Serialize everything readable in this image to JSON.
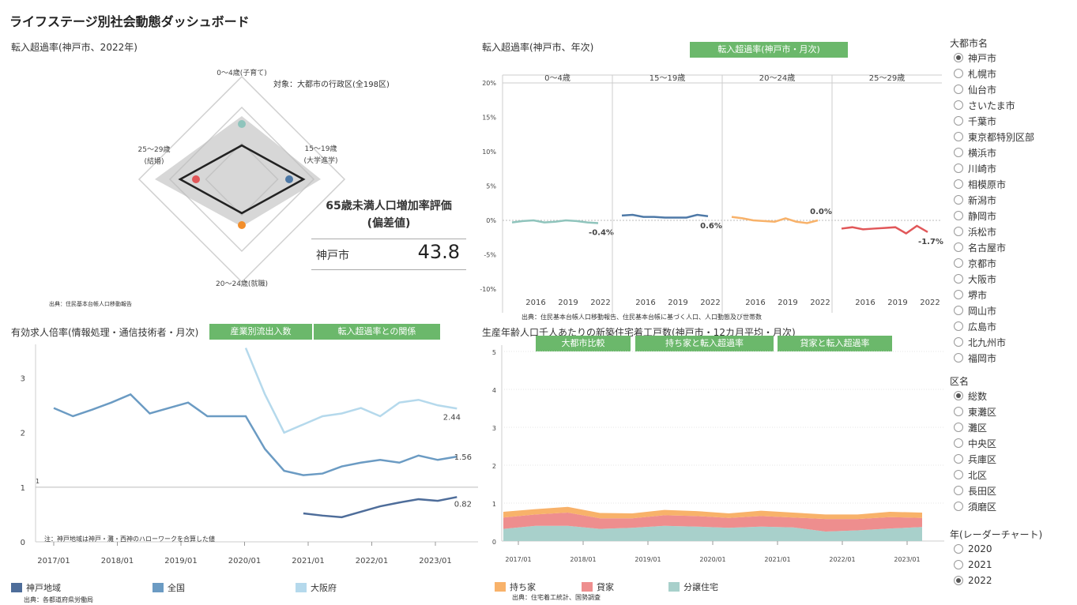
{
  "title": "ライフステージ別社会動態ダッシュボード",
  "radar": {
    "title": "転入超過率(神戸市、2022年)",
    "note": "対象：大都市の行政区(全198区)",
    "source": "出典：住民基本台帳人口移動報告",
    "axis_top": "0～4歳(子育て)",
    "axis_right_1": "15～19歳",
    "axis_right_2": "(大学進学)",
    "axis_bottom": "20～24歳(就職)",
    "axis_left_1": "25～29歳",
    "axis_left_2": "(結婚)",
    "colors": {
      "top": "#8fc4bc",
      "right": "#4e79a7",
      "bottom": "#f28e2b",
      "left": "#e15759"
    }
  },
  "kpi": {
    "title_1": "65歳未満人口増加率評価",
    "title_2": "(偏差値)",
    "city": "神戸市",
    "value": "43.8"
  },
  "trend": {
    "title": "転入超過率(神戸市、年次)",
    "button": "転入超過率(神戸市・月次)",
    "source": "出典：住民基本台帳人口移動報告、住民基本台帳に基づく人口、人口動態及び世帯数",
    "y_ticks": [
      "20%",
      "15%",
      "10%",
      "5%",
      "0%",
      "-5%",
      "-10%"
    ],
    "x_ticks": [
      "2016",
      "2019",
      "2022"
    ],
    "panels": [
      {
        "label": "0～4歳",
        "color": "#8fc4bc",
        "end_label": "-0.4%"
      },
      {
        "label": "15～19歳",
        "color": "#4e79a7",
        "end_label": "0.6%"
      },
      {
        "label": "20～24歳",
        "color": "#f8b26a",
        "end_label": "0.0%"
      },
      {
        "label": "25～29歳",
        "color": "#e15759",
        "end_label": "-1.7%"
      }
    ]
  },
  "jobs": {
    "title": "有効求人倍率(情報処理・通信技術者・月次)",
    "button_1": "産業別流出入数",
    "button_2": "転入超過率との関係",
    "note": "注：神戸地域は神戸・灘・西神のハローワークを合算した値",
    "source": "出典：各都道府県労働局",
    "y_ticks": [
      "3",
      "2",
      "1",
      "0"
    ],
    "ref_label": "1",
    "x_ticks": [
      "2017/01",
      "2018/01",
      "2019/01",
      "2020/01",
      "2021/01",
      "2022/01",
      "2023/01"
    ],
    "end_labels": [
      "2.44",
      "1.56",
      "0.82"
    ],
    "legend": [
      {
        "label": "神戸地域",
        "color": "#4e6d9a"
      },
      {
        "label": "全国",
        "color": "#6b9bc3"
      },
      {
        "label": "大阪府",
        "color": "#b5d9ec"
      }
    ]
  },
  "housing": {
    "title": "生産年齢人口千人あたりの新築住宅着工戸数(神戸市・12カ月平均・月次)",
    "button_1": "大都市比較",
    "button_2": "持ち家と転入超過率",
    "button_3": "貸家と転入超過率",
    "source": "出典：住宅着工統計、国勢調査",
    "y_ticks": [
      "5",
      "4",
      "3",
      "2",
      "1",
      "0"
    ],
    "x_ticks": [
      "2017/01",
      "2018/01",
      "2019/01",
      "2020/01",
      "2021/01",
      "2022/01",
      "2023/01"
    ],
    "legend": [
      {
        "label": "持ち家",
        "color": "#f8b26a"
      },
      {
        "label": "貸家",
        "color": "#ee8e8e"
      },
      {
        "label": "分譲住宅",
        "color": "#a8d0cb"
      }
    ]
  },
  "filters": {
    "city_title": "大都市名",
    "cities": [
      "神戸市",
      "札幌市",
      "仙台市",
      "さいたま市",
      "千葉市",
      "東京都特別区部",
      "横浜市",
      "川崎市",
      "相模原市",
      "新潟市",
      "静岡市",
      "浜松市",
      "名古屋市",
      "京都市",
      "大阪市",
      "堺市",
      "岡山市",
      "広島市",
      "北九州市",
      "福岡市"
    ],
    "city_selected": "神戸市",
    "ward_title": "区名",
    "wards": [
      "総数",
      "東灘区",
      "灘区",
      "中央区",
      "兵庫区",
      "北区",
      "長田区",
      "須磨区"
    ],
    "ward_selected": "総数",
    "year_title": "年(レーダーチャート)",
    "years": [
      "2020",
      "2021",
      "2022"
    ],
    "year_selected": "2022"
  },
  "chart_data": [
    {
      "type": "radar",
      "title": "転入超過率(神戸市、2022年)",
      "categories": [
        "0～4歳(子育て)",
        "15～19歳(大学進学)",
        "20～24歳(就職)",
        "25～29歳(結婚)"
      ],
      "values": [
        0.55,
        1.0,
        0.55,
        1.0
      ]
    },
    {
      "type": "line",
      "title": "転入超過率(神戸市、年次)",
      "x": [
        2014,
        2015,
        2016,
        2017,
        2018,
        2019,
        2020,
        2021,
        2022
      ],
      "ylim": [
        -10,
        20
      ],
      "series": [
        {
          "name": "0～4歳",
          "values": [
            -0.3,
            -0.1,
            0.0,
            -0.3,
            -0.2,
            0.0,
            -0.1,
            -0.3,
            -0.4
          ]
        },
        {
          "name": "15～19歳",
          "values": [
            0.7,
            0.8,
            0.5,
            0.5,
            0.4,
            0.4,
            0.4,
            0.8,
            0.6
          ]
        },
        {
          "name": "20～24歳",
          "values": [
            0.5,
            0.3,
            0.0,
            -0.1,
            -0.2,
            0.3,
            -0.2,
            -0.4,
            0.0
          ]
        },
        {
          "name": "25～29歳",
          "values": [
            -1.2,
            -1.0,
            -1.3,
            -1.2,
            -1.1,
            -1.0,
            -1.9,
            -0.8,
            -1.7
          ]
        }
      ]
    },
    {
      "type": "line",
      "title": "有効求人倍率(情報処理・通信技術者・月次)",
      "x": [
        "2016/11",
        "2017/03",
        "2017/07",
        "2017/11",
        "2018/01",
        "2018/05",
        "2018/09",
        "2019/01",
        "2019/05",
        "2019/09",
        "2020/01",
        "2020/05",
        "2020/09",
        "2021/01",
        "2021/05",
        "2021/09",
        "2022/01",
        "2022/05",
        "2022/09",
        "2023/01",
        "2023/05",
        "2023/09"
      ],
      "ylim": [
        0,
        3.5
      ],
      "series": [
        {
          "name": "全国",
          "values": [
            2.45,
            2.3,
            2.42,
            2.55,
            2.7,
            2.35,
            2.45,
            2.55,
            2.3,
            2.3,
            2.3,
            1.7,
            1.3,
            1.22,
            1.25,
            1.38,
            1.45,
            1.5,
            1.45,
            1.58,
            1.5,
            1.56
          ]
        },
        {
          "name": "大阪府",
          "values": [
            null,
            null,
            null,
            null,
            null,
            null,
            null,
            null,
            null,
            null,
            3.55,
            2.7,
            2.0,
            2.15,
            2.3,
            2.35,
            2.45,
            2.3,
            2.55,
            2.6,
            2.5,
            2.44
          ]
        },
        {
          "name": "神戸地域",
          "values": [
            null,
            null,
            null,
            null,
            null,
            null,
            null,
            null,
            null,
            null,
            null,
            null,
            null,
            0.52,
            0.48,
            0.45,
            0.55,
            0.65,
            0.72,
            0.78,
            0.75,
            0.82
          ]
        }
      ]
    },
    {
      "type": "area",
      "title": "生産年齢人口千人あたりの新築住宅着工戸数(神戸市・12カ月平均・月次)",
      "x": [
        "2016/11",
        "2017/07",
        "2018/01",
        "2018/07",
        "2019/01",
        "2019/07",
        "2020/01",
        "2020/07",
        "2021/01",
        "2021/07",
        "2022/01",
        "2022/07",
        "2023/01",
        "2023/06"
      ],
      "ylim": [
        0,
        5
      ],
      "series": [
        {
          "name": "分譲住宅",
          "values": [
            0.32,
            0.4,
            0.4,
            0.32,
            0.35,
            0.4,
            0.38,
            0.35,
            0.38,
            0.36,
            0.25,
            0.28,
            0.33,
            0.37
          ]
        },
        {
          "name": "貸家",
          "values": [
            0.3,
            0.3,
            0.35,
            0.28,
            0.25,
            0.28,
            0.28,
            0.26,
            0.28,
            0.26,
            0.33,
            0.3,
            0.3,
            0.24
          ]
        },
        {
          "name": "持ち家",
          "values": [
            0.15,
            0.14,
            0.15,
            0.14,
            0.13,
            0.14,
            0.13,
            0.12,
            0.14,
            0.13,
            0.12,
            0.12,
            0.14,
            0.14
          ]
        }
      ]
    }
  ]
}
